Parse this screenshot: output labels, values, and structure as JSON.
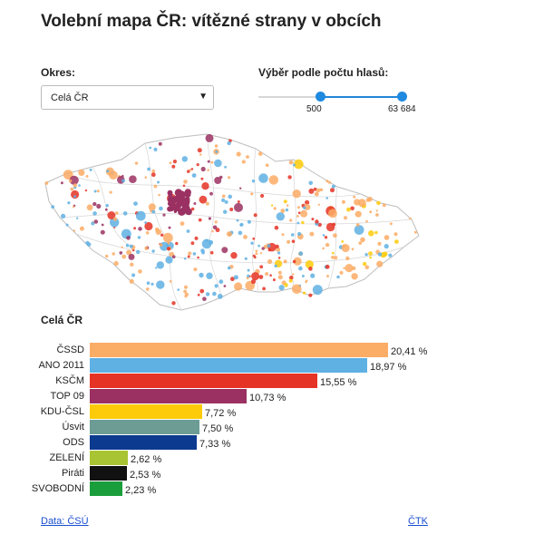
{
  "title": "Volební mapa ČR: vítězné strany v obcích",
  "district": {
    "label": "Okres:",
    "selected": "Celá ČR"
  },
  "votes_filter": {
    "label": "Výběr podle počtu hlasů:",
    "min_label": "500",
    "max_label": "63 684"
  },
  "map": {
    "name": "Czech Republic municipalities map"
  },
  "results": {
    "region": "Celá ČR",
    "parties": [
      {
        "name": "ČSSD",
        "value": 20.41,
        "label": "20,41 %",
        "color": "#fbac65"
      },
      {
        "name": "ANO 2011",
        "value": 18.97,
        "label": "18,97 %",
        "color": "#5fb0e3"
      },
      {
        "name": "KSČM",
        "value": 15.55,
        "label": "15,55 %",
        "color": "#e53325"
      },
      {
        "name": "TOP 09",
        "value": 10.73,
        "label": "10,73 %",
        "color": "#9b3162"
      },
      {
        "name": "KDU-ČSL",
        "value": 7.72,
        "label": "7,72 %",
        "color": "#fdcb0a"
      },
      {
        "name": "Úsvit",
        "value": 7.5,
        "label": "7,50 %",
        "color": "#6c9c94"
      },
      {
        "name": "ODS",
        "value": 7.33,
        "label": "7,33 %",
        "color": "#0c3a8f"
      },
      {
        "name": "ZELENÍ",
        "value": 2.62,
        "label": "2,62 %",
        "color": "#a8c433"
      },
      {
        "name": "Piráti",
        "value": 2.53,
        "label": "2,53 %",
        "color": "#111111"
      },
      {
        "name": "SVOBODNÍ",
        "value": 2.23,
        "label": "2,23 %",
        "color": "#1a9e3c"
      }
    ]
  },
  "footer": {
    "source": "Data: ČSÚ",
    "credit": "ČTK"
  }
}
